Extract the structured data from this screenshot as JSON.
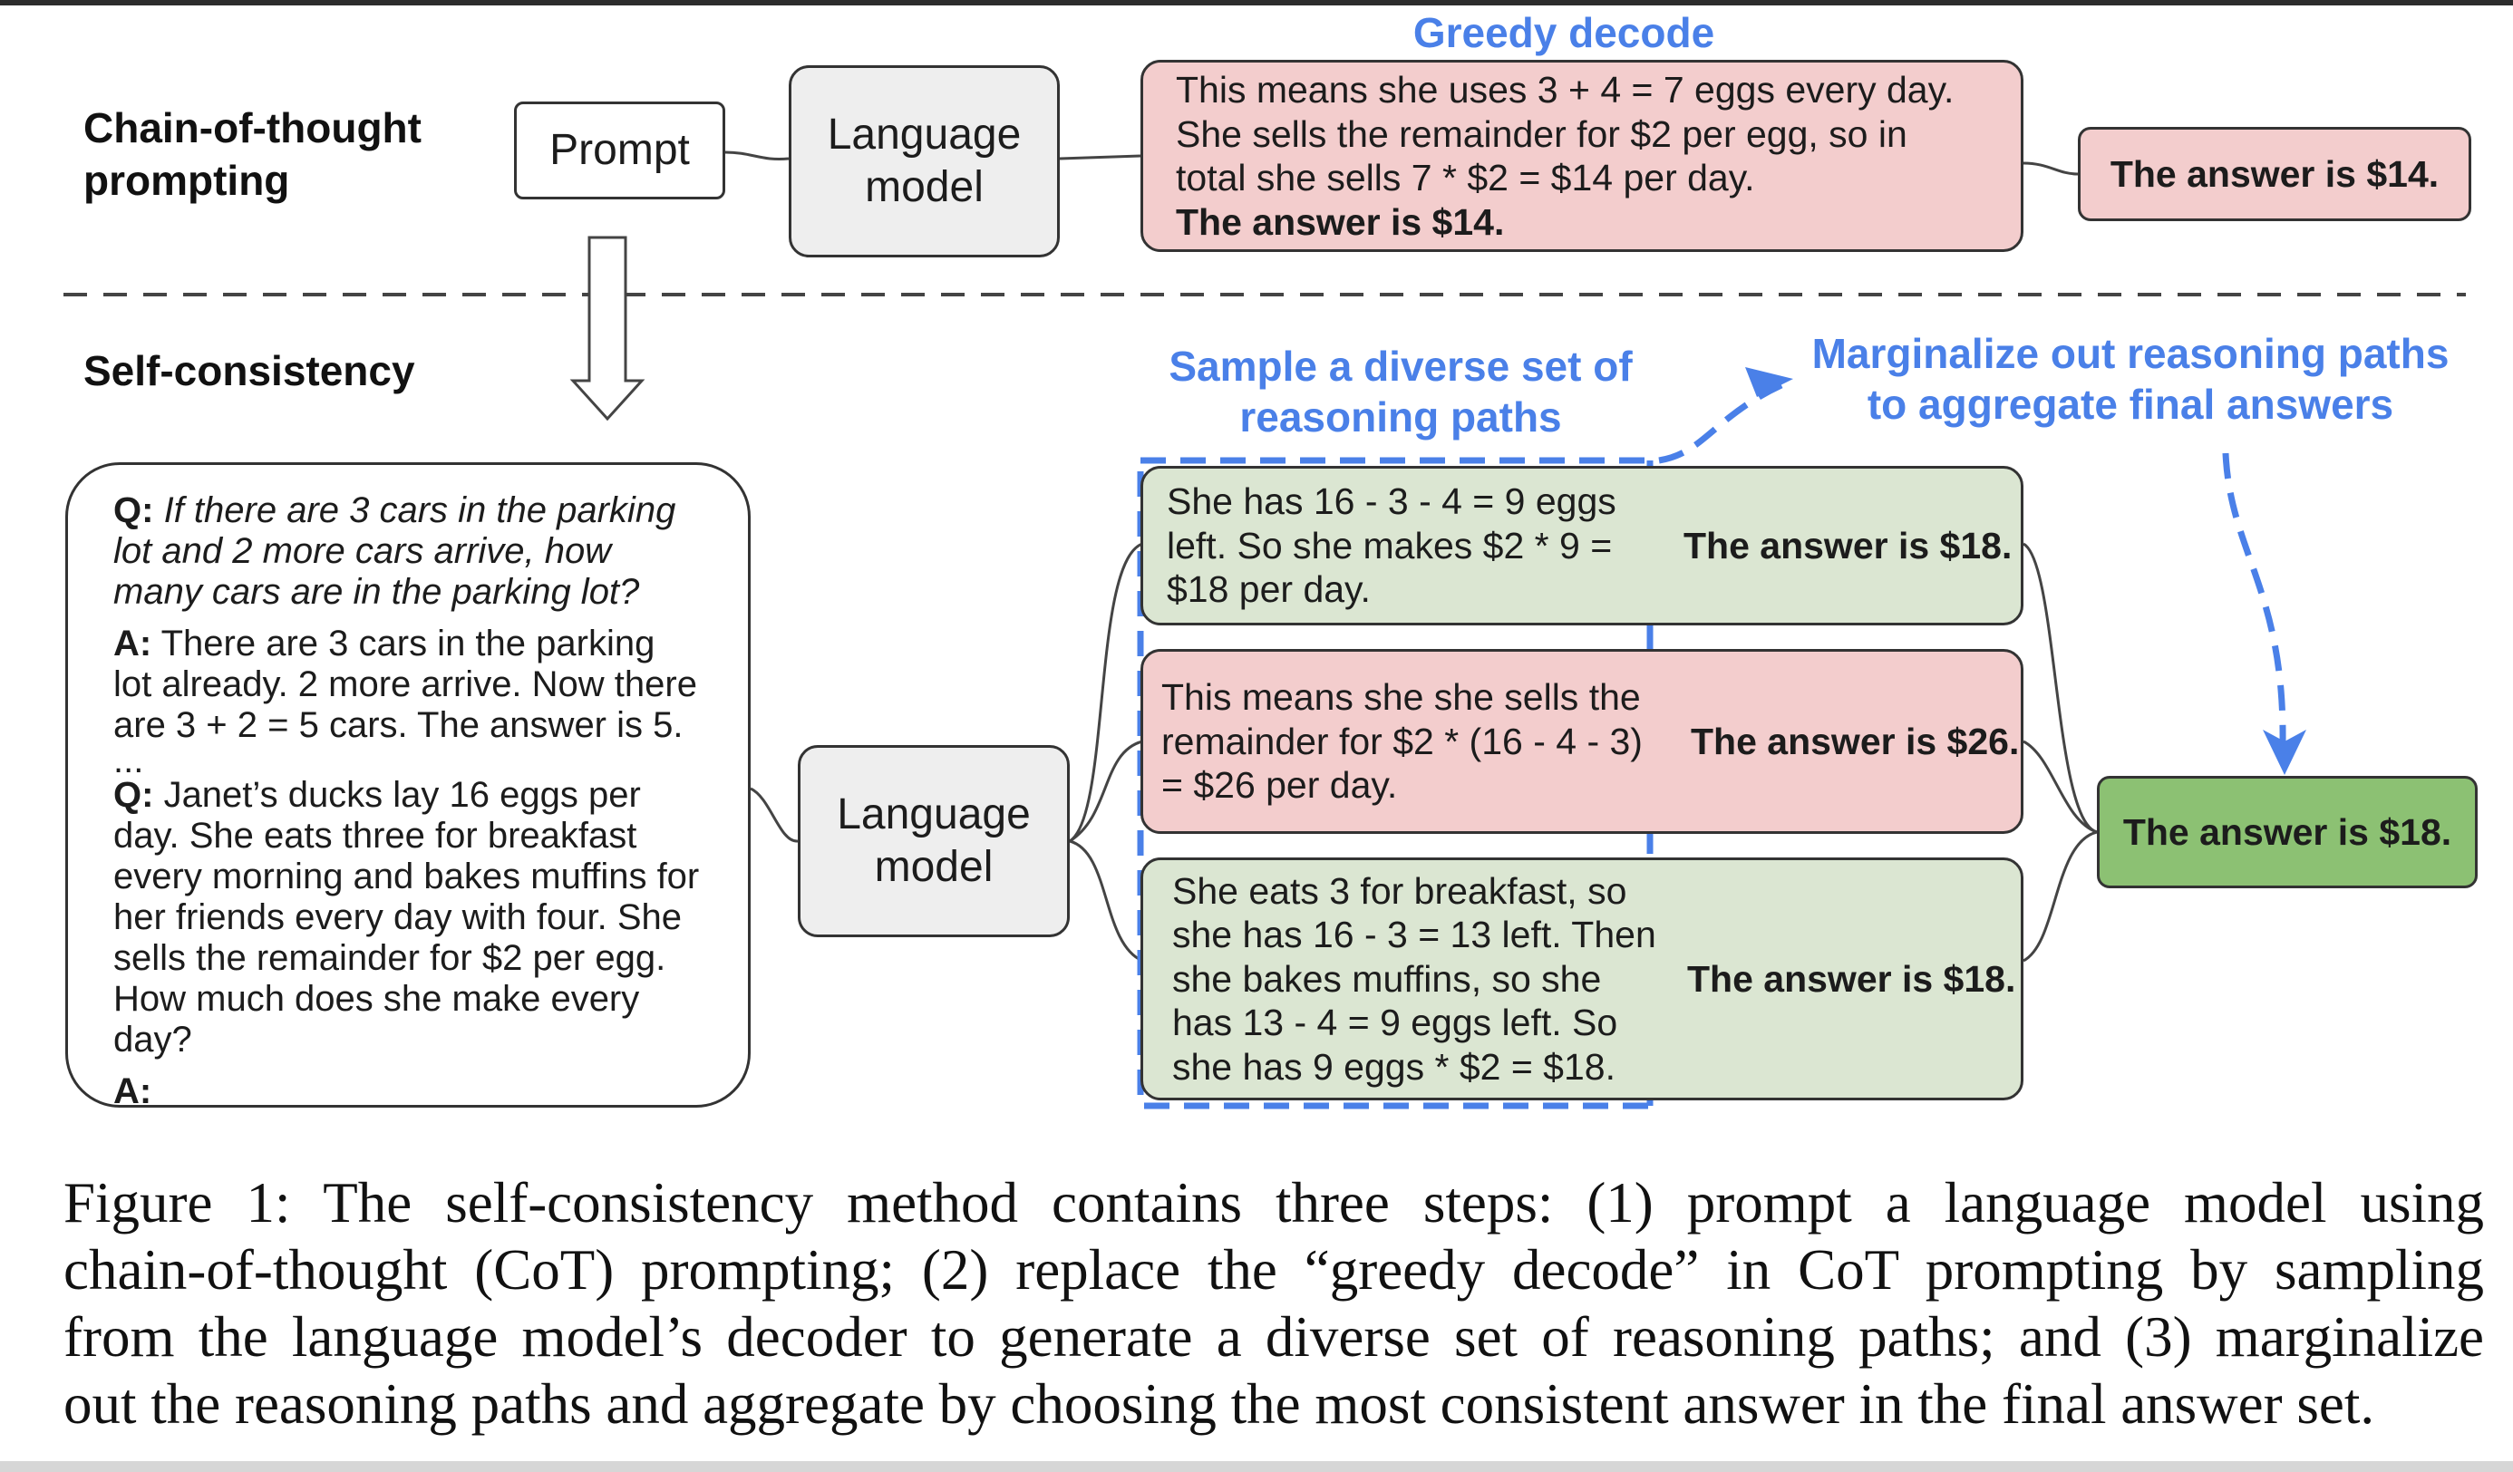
{
  "cot": {
    "heading_line1": "Chain-of-thought",
    "heading_line2": "prompting",
    "prompt_label": "Prompt",
    "lm_line1": "Language",
    "lm_line2": "model",
    "greedy_label": "Greedy decode",
    "greedy_lines": [
      "This means she uses 3 + 4 = 7 eggs every day.",
      "She sells the remainder for $2 per egg, so in",
      "total she sells 7 * $2 = $14 per day."
    ],
    "greedy_bold": "The answer is $14.",
    "answer": "The answer is $14."
  },
  "sc": {
    "heading": "Self-consistency",
    "question": {
      "q1_label": "Q:",
      "q1_text": "If there are 3 cars in the parking lot and 2 more cars arrive, how many cars are in the parking lot?",
      "a1_label": "A:",
      "a1_text": "There are 3 cars in the parking lot already. 2 more arrive. Now there are 3 + 2 = 5 cars. The answer is 5.",
      "ellipsis": "...",
      "q2_label": "Q:",
      "q2_text": "Janet’s ducks lay 16 eggs per day. She eats three for breakfast every morning and bakes muffins for her friends every day with four. She sells the remainder for $2 per egg. How much does she make every day?",
      "a2_label": "A:"
    },
    "lm_line1": "Language",
    "lm_line2": "model",
    "sample_label_line1": "Sample a diverse set of",
    "sample_label_line2": "reasoning paths",
    "marginalize_line1": "Marginalize out reasoning paths",
    "marginalize_line2": "to aggregate final answers",
    "paths": [
      {
        "lines": [
          "She has 16 - 3 - 4 = 9 eggs",
          "left. So she makes $2 * 9 =",
          "$18 per day."
        ],
        "answer": "The answer is $18."
      },
      {
        "lines": [
          "This means she she sells the",
          "remainder for $2 * (16 - 4 - 3)",
          "= $26 per day."
        ],
        "answer": "The answer is $26."
      },
      {
        "lines": [
          "She eats 3 for breakfast, so",
          "she has 16 - 3 = 13 left. Then",
          "she bakes muffins, so she",
          "has 13 - 4 = 9 eggs left. So",
          "she has 9 eggs * $2 = $18."
        ],
        "answer": "The answer is $18."
      }
    ],
    "final_answer": "The answer is $18."
  },
  "caption": {
    "lines": [
      "Figure 1: The self-consistency method contains three steps: (1) prompt a language model using",
      "chain-of-thought (CoT) prompting; (2) replace the “greedy decode” in CoT prompting by sampling",
      "from the language model’s decoder to generate a diverse set of reasoning paths; and (3) marginalize",
      "out the reasoning paths and aggregate by choosing the most consistent answer in the final answer set."
    ]
  },
  "colors": {
    "blue_accent": "#4a80e8",
    "red_box": "#f3cdcd",
    "green_box": "#dbe6d2",
    "final_green": "#8cc173",
    "gray_box": "#eeeeee"
  }
}
